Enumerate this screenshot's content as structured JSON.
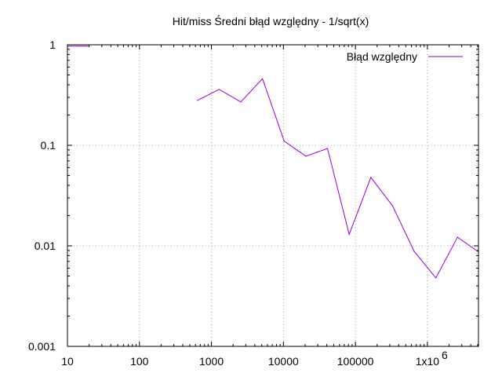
{
  "chart_data": {
    "type": "line",
    "title": "Hit/miss Średni błąd względny - 1/sqrt(x)",
    "xlabel": "",
    "ylabel": "",
    "x_scale": "log",
    "y_scale": "log",
    "xlim": [
      10,
      5120000
    ],
    "ylim": [
      0.001,
      1
    ],
    "grid": true,
    "legend_position": "top-right",
    "x_ticks": [
      {
        "value": 10,
        "label": "10"
      },
      {
        "value": 100,
        "label": "100"
      },
      {
        "value": 1000,
        "label": "1000"
      },
      {
        "value": 10000,
        "label": "10000"
      },
      {
        "value": 100000,
        "label": "100000"
      },
      {
        "value": 1000000,
        "label": "1x10",
        "superscript": "6"
      }
    ],
    "y_ticks": [
      {
        "value": 0.001,
        "label": "0.001"
      },
      {
        "value": 0.01,
        "label": "0.01"
      },
      {
        "value": 0.1,
        "label": "0.1"
      },
      {
        "value": 1,
        "label": "1"
      }
    ],
    "series": [
      {
        "name": "Błąd względny",
        "color": "#9400d3",
        "segments": [
          {
            "x": [
              10,
              20
            ],
            "y": [
              0.97,
              0.97
            ]
          },
          {
            "x": [
              640,
              1280,
              2560,
              5120,
              10240,
              20480,
              40960,
              81920,
              163840,
              327680,
              655360,
              1310720,
              2621440,
              5120000
            ],
            "y": [
              0.28,
              0.36,
              0.27,
              0.46,
              0.11,
              0.078,
              0.093,
              0.013,
              0.048,
              0.025,
              0.0088,
              0.0048,
              0.0122,
              0.0087
            ]
          }
        ]
      }
    ]
  }
}
